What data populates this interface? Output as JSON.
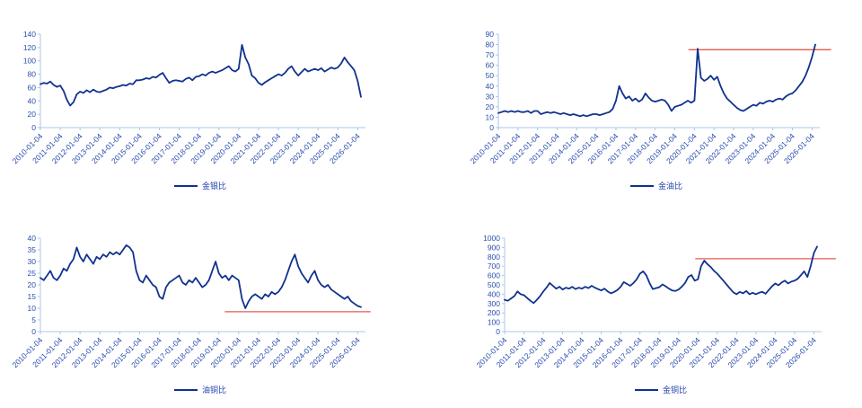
{
  "colors": {
    "line": "#10328f",
    "axis_line": "#a9c7e8",
    "tick_label": "#2c4fae",
    "legend_text": "#2344ae",
    "ref_line": "#e8584e",
    "background": "#ffffff"
  },
  "x_axis_note": "dates shown on every chart",
  "chart_data": [
    {
      "type": "line",
      "legend": "金银比",
      "ylim": [
        0,
        140
      ],
      "ytick_step": 20,
      "grid": false,
      "legend_position": "bottom",
      "x_labels": [
        "2010-01-04",
        "2011-01-04",
        "2012-01-04",
        "2013-01-04",
        "2014-01-04",
        "2015-01-04",
        "2016-01-04",
        "2017-01-04",
        "2018-01-04",
        "2019-01-04",
        "2020-01-04",
        "2021-01-04",
        "2022-01-04",
        "2023-01-04",
        "2024-01-04",
        "2025-01-04",
        "2026-01-04"
      ],
      "values": [
        65,
        67,
        66,
        69,
        64,
        61,
        63,
        55,
        42,
        33,
        38,
        50,
        54,
        52,
        56,
        53,
        57,
        54,
        53,
        55,
        57,
        60,
        59,
        61,
        62,
        64,
        63,
        66,
        65,
        71,
        71,
        72,
        74,
        73,
        76,
        75,
        79,
        82,
        74,
        67,
        70,
        71,
        70,
        69,
        73,
        75,
        71,
        76,
        77,
        80,
        78,
        82,
        84,
        82,
        84,
        86,
        89,
        92,
        86,
        84,
        88,
        124,
        105,
        95,
        78,
        74,
        67,
        64,
        68,
        71,
        74,
        77,
        80,
        78,
        82,
        88,
        92,
        84,
        78,
        83,
        88,
        84,
        86,
        88,
        86,
        89,
        84,
        87,
        90,
        88,
        90,
        96,
        105,
        98,
        92,
        86,
        70,
        46
      ],
      "ref_line": null
    },
    {
      "type": "line",
      "legend": "金油比",
      "ylim": [
        0,
        90
      ],
      "ytick_step": 10,
      "grid": false,
      "legend_position": "bottom",
      "x_labels": [
        "2010-01-04",
        "2011-01-04",
        "2012-01-04",
        "2013-01-04",
        "2014-01-04",
        "2015-01-04",
        "2016-01-04",
        "2017-01-04",
        "2018-01-04",
        "2019-01-04",
        "2020-01-04",
        "2021-01-04",
        "2022-01-04",
        "2023-01-04",
        "2024-01-04",
        "2025-01-04",
        "2026-01-04"
      ],
      "values": [
        14,
        15,
        16,
        15,
        16,
        15,
        16,
        15,
        15,
        16,
        14,
        16,
        16,
        13,
        14,
        15,
        14,
        15,
        14,
        13,
        14,
        13,
        12,
        13,
        12,
        11,
        12,
        11,
        12,
        13,
        13,
        12,
        13,
        14,
        15,
        18,
        26,
        40,
        33,
        28,
        30,
        26,
        28,
        25,
        27,
        33,
        29,
        26,
        25,
        26,
        27,
        26,
        22,
        16,
        20,
        21,
        22,
        24,
        26,
        24,
        26,
        76,
        48,
        45,
        47,
        50,
        46,
        49,
        40,
        33,
        28,
        25,
        22,
        19,
        17,
        16,
        18,
        20,
        22,
        21,
        24,
        23,
        25,
        26,
        25,
        27,
        28,
        27,
        30,
        32,
        33,
        36,
        40,
        44,
        50,
        58,
        68,
        80
      ],
      "ref_line": {
        "y": 75,
        "x_start_frac": 0.6,
        "x_end_frac": 1.05
      }
    },
    {
      "type": "line",
      "legend": "油铜比",
      "ylim": [
        0,
        40
      ],
      "ytick_step": 5,
      "grid": false,
      "legend_position": "bottom",
      "x_labels": [
        "2010-01-04",
        "2011-01-04",
        "2012-01-04",
        "2013-01-04",
        "2014-01-04",
        "2015-01-04",
        "2016-01-04",
        "2017-01-04",
        "2018-01-04",
        "2019-01-04",
        "2020-01-04",
        "2021-01-04",
        "2022-01-04",
        "2023-01-04",
        "2024-01-04",
        "2025-01-04",
        "2026-01-04"
      ],
      "values": [
        23,
        22,
        24,
        26,
        23,
        22,
        24,
        27,
        26,
        29,
        31,
        36,
        32,
        30,
        33,
        31,
        29,
        32,
        31,
        33,
        32,
        34,
        33,
        34,
        33,
        35,
        37,
        36,
        34,
        26,
        22,
        21,
        24,
        22,
        20,
        19,
        15,
        14,
        19,
        21,
        22,
        23,
        24,
        21,
        20,
        22,
        21,
        23,
        21,
        19,
        20,
        22,
        26,
        30,
        25,
        23,
        24,
        22,
        24,
        23,
        22,
        14,
        10,
        13,
        15,
        16,
        15,
        14,
        16,
        15,
        17,
        16,
        17,
        19,
        22,
        26,
        30,
        33,
        28,
        25,
        23,
        21,
        24,
        26,
        22,
        20,
        19,
        20,
        18,
        17,
        16,
        15,
        14,
        15,
        13,
        12,
        11,
        10.5
      ],
      "ref_line": {
        "y": 8.5,
        "x_start_frac": 0.575,
        "x_end_frac": 1.03
      }
    },
    {
      "type": "line",
      "legend": "金铜比",
      "ylim": [
        0,
        1000
      ],
      "ytick_step": 100,
      "grid": false,
      "legend_position": "bottom",
      "x_labels": [
        "2010-01-04",
        "2011-01-04",
        "2012-01-04",
        "2013-01-04",
        "2014-01-04",
        "2015-01-04",
        "2016-01-04",
        "2017-01-04",
        "2018-01-04",
        "2019-01-04",
        "2020-01-04",
        "2021-01-04",
        "2022-01-04",
        "2023-01-04",
        "2024-01-04",
        "2025-01-04",
        "2026-01-04"
      ],
      "values": [
        340,
        330,
        355,
        380,
        430,
        400,
        390,
        360,
        330,
        305,
        340,
        380,
        430,
        470,
        520,
        490,
        460,
        480,
        450,
        470,
        460,
        480,
        455,
        470,
        460,
        480,
        465,
        490,
        470,
        455,
        440,
        460,
        430,
        410,
        425,
        445,
        480,
        530,
        510,
        490,
        520,
        560,
        620,
        645,
        600,
        520,
        455,
        465,
        475,
        505,
        485,
        460,
        440,
        435,
        450,
        480,
        520,
        585,
        605,
        545,
        560,
        700,
        760,
        720,
        690,
        650,
        620,
        580,
        540,
        500,
        460,
        420,
        400,
        425,
        410,
        435,
        400,
        415,
        400,
        415,
        425,
        405,
        445,
        485,
        515,
        495,
        525,
        545,
        515,
        535,
        545,
        565,
        605,
        645,
        585,
        700,
        840,
        910
      ],
      "ref_line": {
        "y": 780,
        "x_start_frac": 0.61,
        "x_end_frac": 1.06
      }
    }
  ]
}
